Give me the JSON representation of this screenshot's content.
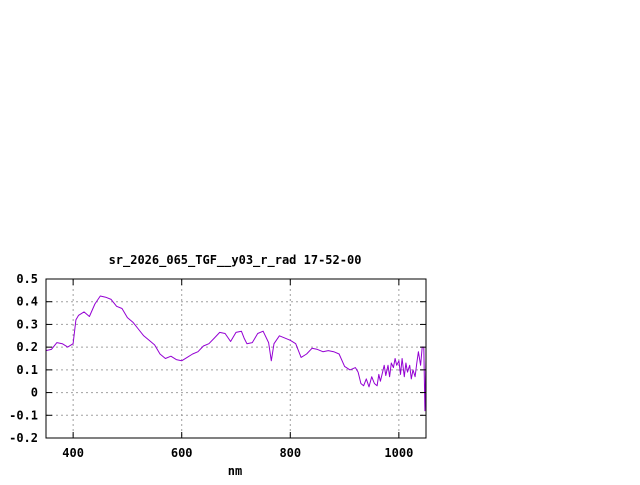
{
  "chart_data": {
    "type": "line",
    "title": "sr_2026_065_TGF__y03_r_rad 17-52-00",
    "xlabel": "nm",
    "ylabel": "",
    "xlim": [
      350,
      1050
    ],
    "ylim": [
      -0.2,
      0.5
    ],
    "xticks": [
      400,
      600,
      800,
      1000
    ],
    "xtick_labels": [
      "400",
      "600",
      "800",
      "1000"
    ],
    "yticks": [
      -0.2,
      -0.1,
      0,
      0.1,
      0.2,
      0.3,
      0.4,
      0.5
    ],
    "ytick_labels": [
      "-0.2",
      "-0.1",
      "0",
      "0.1",
      "0.2",
      "0.3",
      "0.4",
      "0.5"
    ],
    "grid": true,
    "legend": "none",
    "colors": {
      "series": "#9400d3",
      "grid": "#a0a0a0",
      "axis": "#000000"
    },
    "series": [
      {
        "x": [
          350,
          360,
          370,
          380,
          390,
          400,
          405,
          410,
          420,
          430,
          440,
          450,
          460,
          470,
          480,
          490,
          500,
          510,
          520,
          530,
          540,
          550,
          560,
          570,
          580,
          590,
          600,
          610,
          620,
          630,
          640,
          650,
          660,
          670,
          680,
          690,
          700,
          710,
          715,
          720,
          730,
          740,
          750,
          760,
          765,
          770,
          780,
          790,
          800,
          810,
          820,
          830,
          840,
          850,
          860,
          870,
          880,
          890,
          900,
          910,
          920,
          925,
          930,
          935,
          940,
          945,
          950,
          955,
          960,
          963,
          966,
          970,
          973,
          976,
          980,
          983,
          986,
          990,
          993,
          996,
          1000,
          1003,
          1006,
          1010,
          1013,
          1016,
          1020,
          1023,
          1026,
          1030,
          1033,
          1036,
          1040,
          1043,
          1046,
          1048,
          1050
        ],
        "y": [
          0.185,
          0.19,
          0.22,
          0.215,
          0.2,
          0.215,
          0.32,
          0.34,
          0.355,
          0.335,
          0.39,
          0.425,
          0.42,
          0.41,
          0.38,
          0.37,
          0.33,
          0.31,
          0.28,
          0.25,
          0.23,
          0.21,
          0.17,
          0.15,
          0.16,
          0.145,
          0.14,
          0.155,
          0.17,
          0.18,
          0.205,
          0.215,
          0.24,
          0.265,
          0.26,
          0.225,
          0.265,
          0.27,
          0.24,
          0.215,
          0.22,
          0.26,
          0.27,
          0.22,
          0.14,
          0.215,
          0.25,
          0.24,
          0.23,
          0.215,
          0.155,
          0.17,
          0.195,
          0.19,
          0.18,
          0.185,
          0.18,
          0.17,
          0.115,
          0.1,
          0.11,
          0.09,
          0.04,
          0.03,
          0.06,
          0.025,
          0.07,
          0.04,
          0.03,
          0.08,
          0.05,
          0.09,
          0.12,
          0.075,
          0.12,
          0.07,
          0.13,
          0.11,
          0.15,
          0.12,
          0.14,
          0.08,
          0.15,
          0.07,
          0.13,
          0.09,
          0.12,
          0.06,
          0.1,
          0.07,
          0.13,
          0.18,
          0.12,
          0.2,
          0.2,
          -0.08,
          0.15
        ]
      }
    ]
  }
}
